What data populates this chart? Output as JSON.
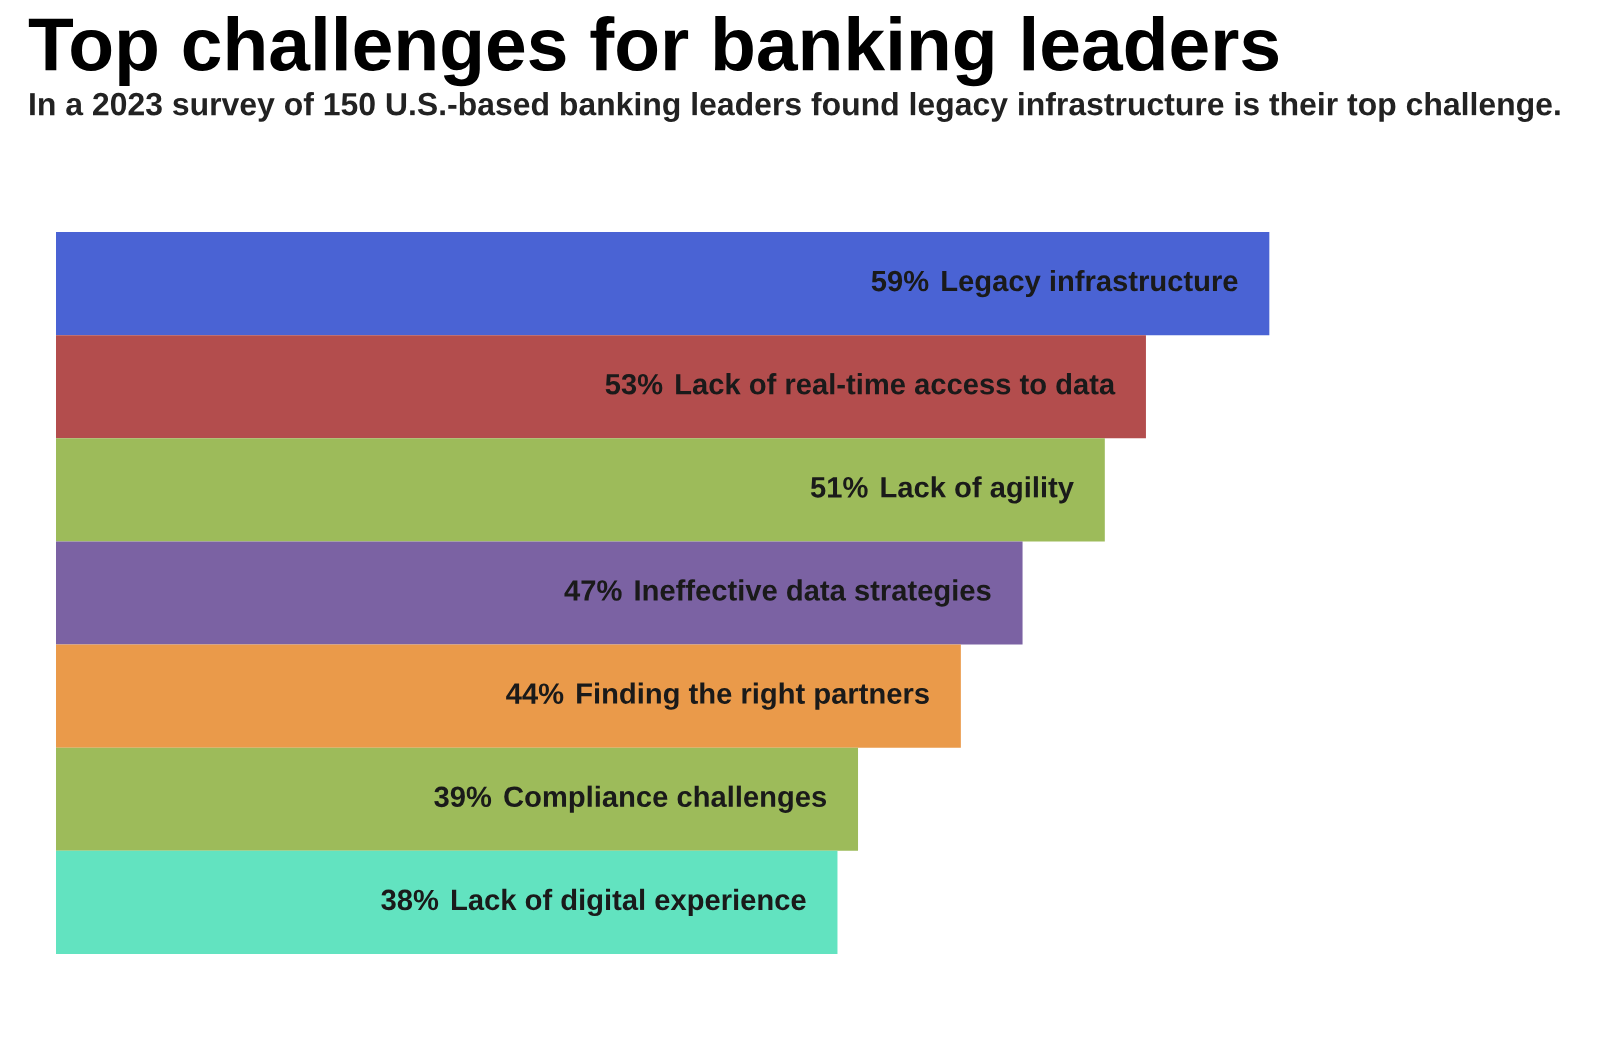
{
  "chart_data": {
    "type": "bar",
    "orientation": "horizontal",
    "title": "Top challenges for banking leaders",
    "subtitle": "In a 2023 survey of 150 U.S.-based banking leaders found legacy infrastructure is their top challenge.",
    "categories": [
      "Legacy infrastructure",
      "Lack of real-time access to data",
      "Lack of agility",
      "Ineffective data strategies",
      "Finding the right partners",
      "Compliance challenges",
      "Lack of digital experience"
    ],
    "values": [
      59,
      53,
      51,
      47,
      44,
      39,
      38
    ],
    "value_labels": [
      "59%",
      "53%",
      "51%",
      "47%",
      "44%",
      "39%",
      "38%"
    ],
    "colors": [
      "#4a63d4",
      "#b34d4d",
      "#9dbb5a",
      "#7b62a3",
      "#ea9a4a",
      "#9dbb5a",
      "#62e3c0"
    ],
    "legend": false
  }
}
